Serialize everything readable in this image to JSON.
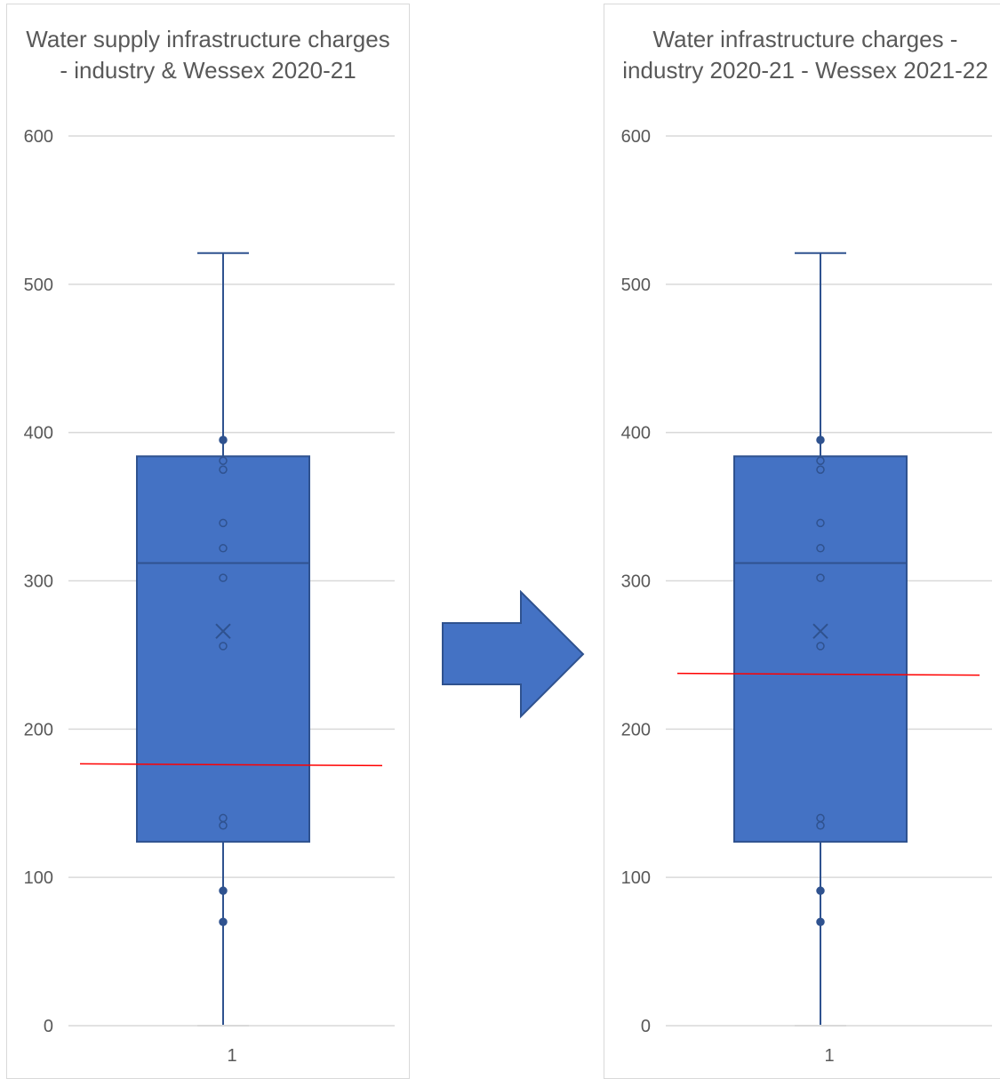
{
  "arrow": {
    "color": "#4472c4",
    "direction": "right"
  },
  "chart_data": [
    {
      "type": "box",
      "title": "Water supply infrastructure charges - industry & Wessex 2020-21",
      "categories": [
        "1"
      ],
      "ylim": [
        0,
        600
      ],
      "yticks": [
        "0",
        "100",
        "200",
        "300",
        "400",
        "500",
        "600"
      ],
      "box": {
        "min": 0,
        "q1": 124,
        "median": 312,
        "q3": 384,
        "max": 521,
        "mean": 266
      },
      "points": [
        70,
        91,
        135,
        140,
        256,
        302,
        322,
        339,
        375,
        381,
        395
      ],
      "reference_line": {
        "value": 176,
        "color": "#ff0000"
      },
      "grid": true,
      "colors": {
        "box": "#4472c4",
        "edge": "#2f528f"
      }
    },
    {
      "type": "box",
      "title": "Water infrastructure charges - industry 2020-21 - Wessex 2021-22",
      "categories": [
        "1"
      ],
      "ylim": [
        0,
        600
      ],
      "yticks": [
        "0",
        "100",
        "200",
        "300",
        "400",
        "500",
        "600"
      ],
      "box": {
        "min": 0,
        "q1": 124,
        "median": 312,
        "q3": 384,
        "max": 521,
        "mean": 266
      },
      "points": [
        70,
        91,
        135,
        140,
        256,
        302,
        322,
        339,
        375,
        381,
        395
      ],
      "reference_line": {
        "value": 237,
        "color": "#ff0000"
      },
      "grid": true,
      "colors": {
        "box": "#4472c4",
        "edge": "#2f528f"
      }
    }
  ]
}
